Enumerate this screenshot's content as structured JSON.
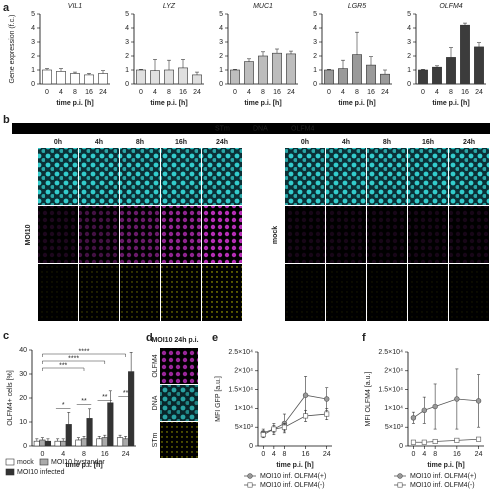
{
  "chart_data": [
    {
      "type": "bar",
      "panel": "a",
      "title": "VIL1",
      "y_label": "Gene expression (f.c.)",
      "x_label": "time p.i. [h]",
      "categories": [
        "0",
        "4",
        "8",
        "16",
        "24"
      ],
      "values": [
        1,
        0.9,
        0.75,
        0.65,
        0.75
      ],
      "errors": [
        0.1,
        0.2,
        0.1,
        0.1,
        0.2
      ],
      "color": "#ffffff",
      "ylim": [
        0,
        5
      ],
      "yticks": [
        0,
        1,
        2,
        3,
        4,
        5
      ]
    },
    {
      "type": "bar",
      "title": "LYZ",
      "x_label": "time p.i. [h]",
      "categories": [
        "0",
        "4",
        "8",
        "16",
        "24"
      ],
      "values": [
        1,
        0.95,
        1,
        1.15,
        0.65
      ],
      "errors": [
        0.05,
        0.8,
        0.7,
        0.6,
        0.2
      ],
      "color": "#e0e0e0",
      "ylim": [
        0,
        5
      ],
      "yticks": [
        0,
        1,
        2,
        3,
        4,
        5
      ]
    },
    {
      "type": "bar",
      "title": "MUC1",
      "x_label": "time p.i. [h]",
      "categories": [
        "0",
        "4",
        "8",
        "16",
        "24"
      ],
      "values": [
        1,
        1.6,
        2,
        2.2,
        2.15
      ],
      "errors": [
        0.05,
        0.2,
        0.3,
        0.3,
        0.2
      ],
      "color": "#bdbdbd",
      "ylim": [
        0,
        5
      ],
      "yticks": [
        0,
        1,
        2,
        3,
        4,
        5
      ]
    },
    {
      "type": "bar",
      "title": "LGR5",
      "x_label": "time p.i. [h]",
      "categories": [
        "0",
        "4",
        "8",
        "16",
        "24"
      ],
      "values": [
        1,
        1.1,
        2.1,
        1.35,
        0.7
      ],
      "errors": [
        0.05,
        0.6,
        1.6,
        0.6,
        0.3
      ],
      "color": "#9a9a9a",
      "ylim": [
        0,
        5
      ],
      "yticks": [
        0,
        1,
        2,
        3,
        4,
        5
      ]
    },
    {
      "type": "bar",
      "title": "OLFM4",
      "x_label": "time p.i. [h]",
      "categories": [
        "0",
        "4",
        "8",
        "16",
        "24"
      ],
      "values": [
        1,
        1.2,
        1.9,
        4.2,
        2.65
      ],
      "errors": [
        0.05,
        0.1,
        0.7,
        0.15,
        0.3
      ],
      "color": "#3c3c3c",
      "ylim": [
        0,
        5
      ],
      "yticks": [
        0,
        1,
        2,
        3,
        4,
        5
      ]
    },
    {
      "type": "bar",
      "panel": "c",
      "y_label": "OLFM4+ cells [%]",
      "x_label": "time p.i. [h]",
      "categories": [
        "0",
        "4",
        "8",
        "16",
        "24"
      ],
      "series": [
        {
          "name": "mock",
          "color": "#ffffff",
          "values": [
            2,
            2,
            2.5,
            3,
            3.5
          ],
          "errors": [
            1,
            1,
            1,
            1,
            1
          ]
        },
        {
          "name": "MOI10 bystander",
          "color": "#aaaaaa",
          "values": [
            2.5,
            2,
            3,
            3.5,
            3
          ],
          "errors": [
            1,
            1,
            1,
            1,
            1
          ]
        },
        {
          "name": "MOI10 infected",
          "color": "#333333",
          "values": [
            2,
            9,
            11.5,
            18,
            31
          ],
          "errors": [
            1,
            5,
            4,
            5,
            8
          ]
        }
      ],
      "ylim": [
        0,
        40
      ],
      "yticks": [
        0,
        10,
        20,
        30,
        40
      ],
      "annotations": [
        {
          "text": "*",
          "from": "4",
          "to": "4"
        },
        {
          "text": "**",
          "from": "8",
          "to": "8"
        },
        {
          "text": "**",
          "from": "16",
          "to": "16"
        },
        {
          "text": "**",
          "from": "24",
          "to": "24"
        },
        {
          "text": "****",
          "from": "0",
          "to": "24"
        },
        {
          "text": "****",
          "from": "0",
          "to": "16"
        },
        {
          "text": "***",
          "from": "0",
          "to": "8"
        }
      ]
    },
    {
      "type": "line",
      "panel": "e",
      "y_label": "MFI GFP [a.u.]",
      "x_label": "time p.i. [h]",
      "x": [
        0,
        4,
        8,
        16,
        24
      ],
      "xlim": [
        -2,
        26
      ],
      "xticks": [
        0,
        4,
        8,
        16,
        24
      ],
      "ylim": [
        0,
        25000
      ],
      "yticks": [
        0,
        {
          "value": 5000,
          "label": "5×10³"
        },
        {
          "value": 10000,
          "label": "1×10⁴"
        },
        {
          "value": 15000,
          "label": "1.5×10⁴"
        },
        {
          "value": 20000,
          "label": "2×10⁴"
        },
        {
          "value": 25000,
          "label": "2.5×10⁴"
        }
      ],
      "series": [
        {
          "name": "MOI10 inf. OLFM4(+)",
          "color": "#555555",
          "marker": "circle",
          "values": [
            3500,
            4500,
            6000,
            13500,
            12500
          ],
          "errors": [
            1000,
            1500,
            2500,
            5000,
            3000
          ]
        },
        {
          "name": "MOI10 inf. OLFM4(-)",
          "color": "#555555",
          "marker": "square",
          "values": [
            3000,
            4500,
            5000,
            8000,
            8500
          ],
          "errors": [
            800,
            1000,
            1000,
            1500,
            1500
          ]
        }
      ]
    },
    {
      "type": "line",
      "panel": "f",
      "y_label": "MFI OLFM4 [a.u.]",
      "x_label": "time p.i. [h]",
      "x": [
        0,
        4,
        8,
        16,
        24
      ],
      "xlim": [
        -2,
        26
      ],
      "xticks": [
        0,
        4,
        8,
        16,
        24
      ],
      "ylim": [
        0,
        25000
      ],
      "yticks": [
        0,
        {
          "value": 5000,
          "label": "5×10³"
        },
        {
          "value": 10000,
          "label": "1×10⁴"
        },
        {
          "value": 15000,
          "label": "1.5×10⁴"
        },
        {
          "value": 20000,
          "label": "2×10⁴"
        },
        {
          "value": 25000,
          "label": "2.5×10⁴"
        }
      ],
      "series": [
        {
          "name": "MOI10 inf. OLFM4(+)",
          "color": "#555555",
          "marker": "circle",
          "values": [
            7500,
            9500,
            10500,
            12500,
            12000
          ],
          "errors": [
            1500,
            3500,
            6000,
            8000,
            7000
          ]
        },
        {
          "name": "MOI10 inf. OLFM4(-)",
          "color": "#555555",
          "marker": "square",
          "values": [
            1000,
            1000,
            1200,
            1500,
            1800
          ],
          "errors": [
            200,
            200,
            200,
            300,
            300
          ]
        }
      ]
    }
  ],
  "images": [
    {
      "panel": "b",
      "legend": [
        "STm",
        "DNA",
        "OLFM4"
      ],
      "legend_colors": [
        "#e8e800",
        "#33cccc",
        "#d040d0"
      ],
      "times": [
        "0h",
        "4h",
        "8h",
        "16h",
        "24h"
      ],
      "groups": [
        "MOI10",
        "mock"
      ]
    },
    {
      "panel": "d",
      "title": "MOI10 24h p.i.",
      "channels": [
        "OLFM4",
        "DNA",
        "STm"
      ],
      "channel_colors": [
        "#d040d0",
        "#33cccc",
        "#e8e800"
      ]
    }
  ]
}
